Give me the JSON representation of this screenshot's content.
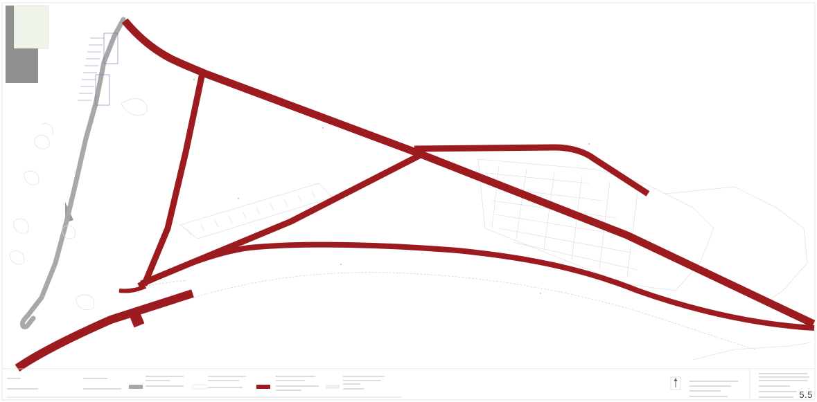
{
  "colors": {
    "red_route": "#9b1b1f",
    "existing_road": "#a7a7a7",
    "building": "#8f8f8f",
    "green_area": "#e8f1e2",
    "faint_line": "#cfcfcf",
    "outline": "#7a7a7a",
    "parking_purple": "#8a6bb0"
  },
  "icons": [
    "north-arrow-icon"
  ],
  "title_block": {
    "sheet_number": "5.5"
  }
}
